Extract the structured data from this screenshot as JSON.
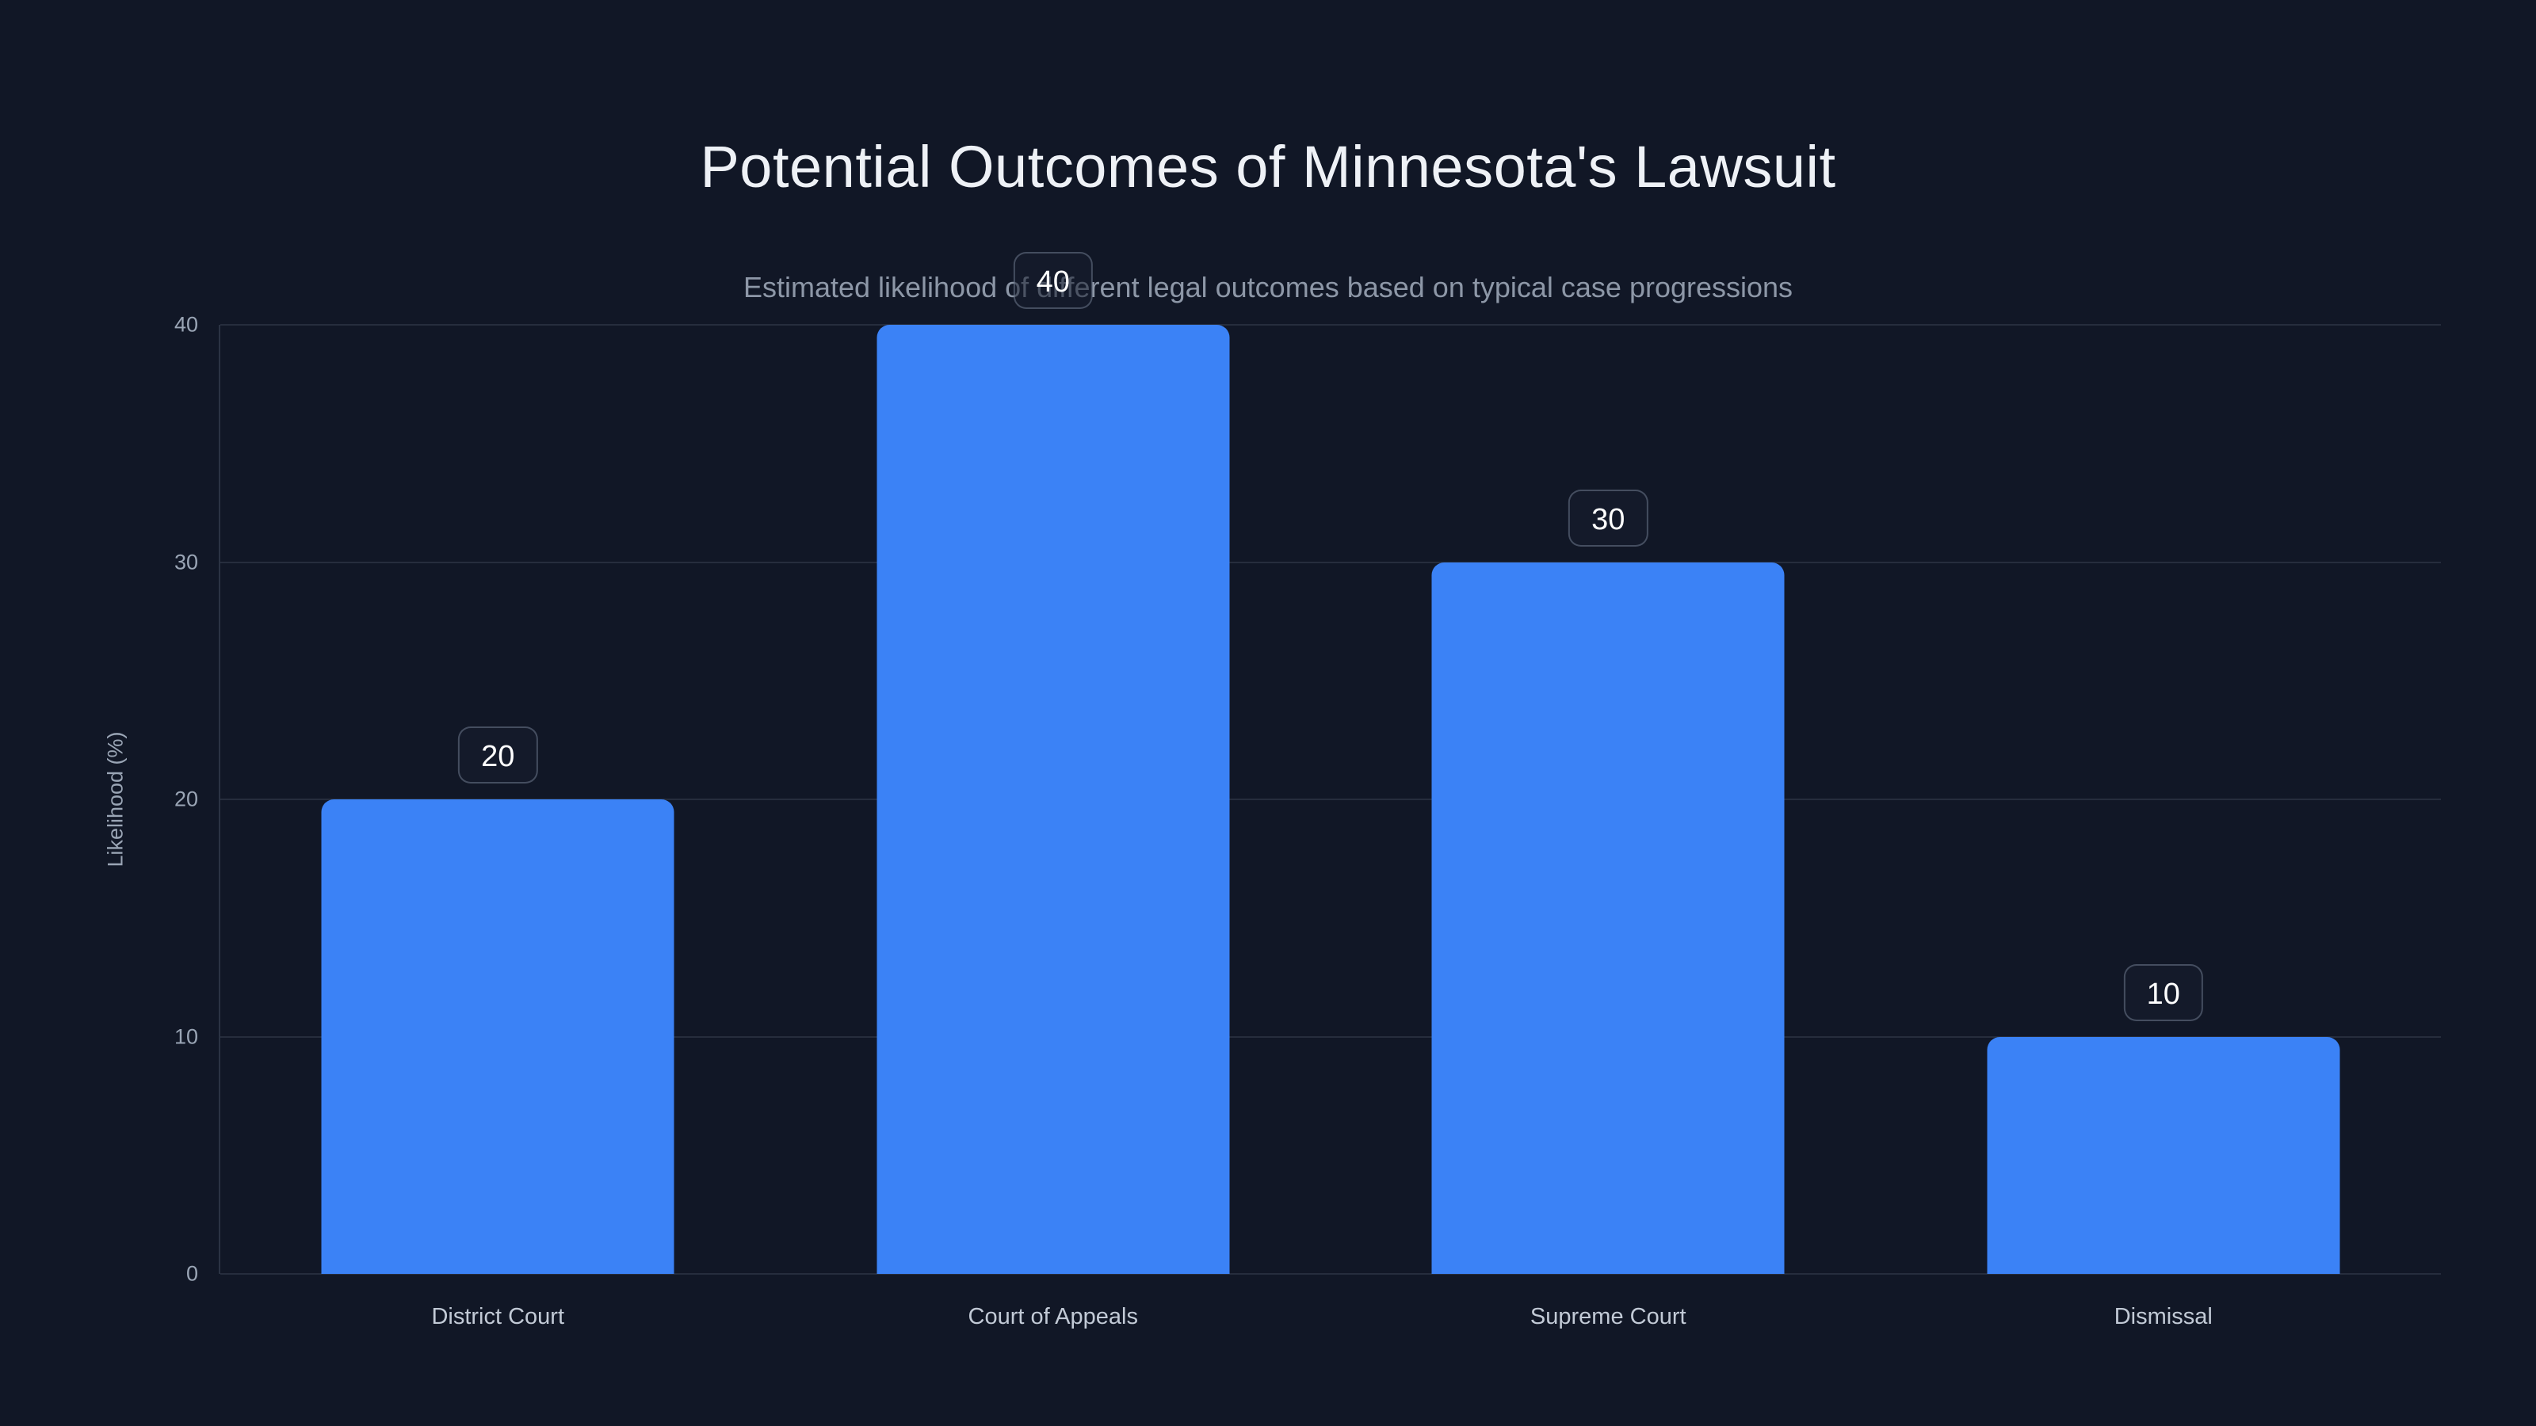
{
  "page": {
    "background_color": "#111726"
  },
  "header": {
    "title": "Potential Outcomes of Minnesota's Lawsuit",
    "subtitle": "Estimated likelihood of different legal outcomes based on typical case progressions"
  },
  "chart_data": {
    "type": "bar",
    "title": "Potential Outcomes of Minnesota's Lawsuit",
    "subtitle": "Estimated likelihood of different legal outcomes based on typical case progressions",
    "categories": [
      "District Court",
      "Court of Appeals",
      "Supreme Court",
      "Dismissal"
    ],
    "values": [
      20,
      40,
      30,
      10
    ],
    "value_labels": [
      "20",
      "40",
      "30",
      "10"
    ],
    "xlabel": "",
    "ylabel": "Likelihood (%)",
    "yticks": [
      0,
      10,
      20,
      30,
      40
    ],
    "ylim": [
      0,
      40
    ],
    "grid": true,
    "legend": "none",
    "bar_color": "#3b82f6",
    "grid_color": "rgba(148,163,184,0.16)",
    "axis_line_color": "rgba(148,163,184,0.20)",
    "tick_label_color": "#9aa5b5",
    "category_label_color": "#c2cad6",
    "title_color": "#eef1f6",
    "subtitle_color": "#8d97a7",
    "badge_text_color": "#ffffff",
    "badge_border_color": "rgba(148,163,184,0.38)",
    "badge_background_color": "rgba(23,30,46,0.55)"
  }
}
